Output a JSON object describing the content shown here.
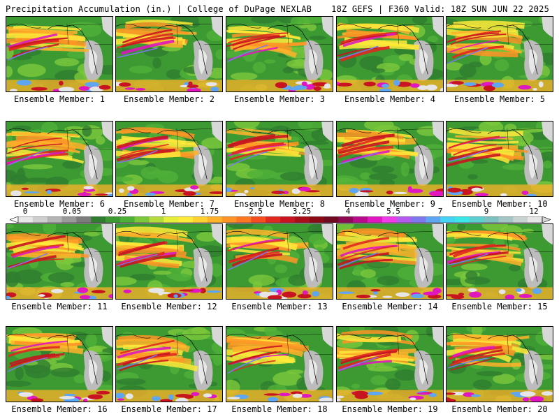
{
  "header": {
    "title_left": "Precipitation Accumulation (in.) | College of DuPage NEXLAB",
    "title_right": "18Z GEFS | F360 Valid: 18Z SUN JUN 22 2025"
  },
  "panels": [
    {
      "label": "Ensemble Member: 1"
    },
    {
      "label": "Ensemble Member: 2"
    },
    {
      "label": "Ensemble Member: 3"
    },
    {
      "label": "Ensemble Member: 4"
    },
    {
      "label": "Ensemble Member: 5"
    },
    {
      "label": "Ensemble Member: 6"
    },
    {
      "label": "Ensemble Member: 7"
    },
    {
      "label": "Ensemble Member: 8"
    },
    {
      "label": "Ensemble Member: 9"
    },
    {
      "label": "Ensemble Member: 10"
    },
    {
      "label": "Ensemble Member: 11"
    },
    {
      "label": "Ensemble Member: 12"
    },
    {
      "label": "Ensemble Member: 13"
    },
    {
      "label": "Ensemble Member: 14"
    },
    {
      "label": "Ensemble Member: 15"
    },
    {
      "label": "Ensemble Member: 16"
    },
    {
      "label": "Ensemble Member: 17"
    },
    {
      "label": "Ensemble Member: 18"
    },
    {
      "label": "Ensemble Member: 19"
    },
    {
      "label": "Ensemble Member: 20"
    }
  ],
  "colorbar": {
    "labels": [
      "0",
      "0.05",
      "0.25",
      "1",
      "1.75",
      "2.5",
      "3.25",
      "4",
      "5.5",
      "7",
      "9",
      "12"
    ],
    "colors": [
      "#e8e8e8",
      "#cfcfcf",
      "#b4b4b4",
      "#9a9a9a",
      "#7c7c7c",
      "#2f7d2f",
      "#3d9a33",
      "#4fb038",
      "#7cc83c",
      "#b5dc3c",
      "#e6ee3c",
      "#ffe93a",
      "#ffd030",
      "#ffb22a",
      "#ff9426",
      "#ff7622",
      "#f44e20",
      "#e02820",
      "#c81420",
      "#a80d1a",
      "#8a0a16",
      "#6f0a20",
      "#8c0a52",
      "#b80a8a",
      "#e016c0",
      "#f03ce8",
      "#b45af0",
      "#7d78f0",
      "#5fa6f2",
      "#46d2f2",
      "#3ae6e6",
      "#5ccfcf",
      "#7cc0c0",
      "#a5c6c6",
      "#c8d4d4",
      "#e6e6e6"
    ]
  }
}
